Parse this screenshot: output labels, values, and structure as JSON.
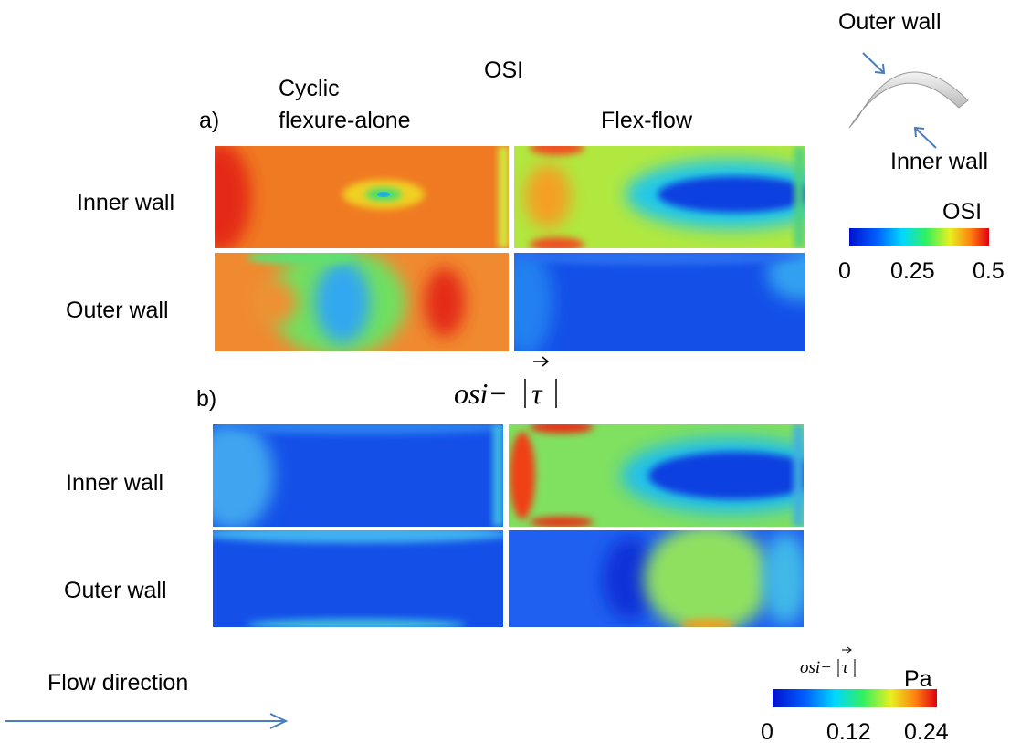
{
  "schematic": {
    "outer_label": "Outer wall",
    "inner_label": "Inner wall"
  },
  "panel_a": {
    "title": "OSI",
    "label": "a)",
    "column_1_lines": [
      "Cyclic",
      "flexure-alone"
    ],
    "column_2": "Flex-flow",
    "rows": [
      "Inner wall",
      "Outer wall"
    ]
  },
  "panel_b": {
    "label": "b)",
    "formula": {
      "prefix": "osi−",
      "symbol": "τ"
    },
    "rows": [
      "Inner wall",
      "Outer wall"
    ]
  },
  "colorbar_a": {
    "title": "OSI",
    "ticks": [
      "0",
      "0.25",
      "0.5"
    ]
  },
  "colorbar_b": {
    "formula": {
      "prefix": "osi−",
      "symbol": "τ"
    },
    "unit": "Pa",
    "ticks": [
      "0",
      "0.12",
      "0.24"
    ]
  },
  "flow_label": "Flow direction"
}
